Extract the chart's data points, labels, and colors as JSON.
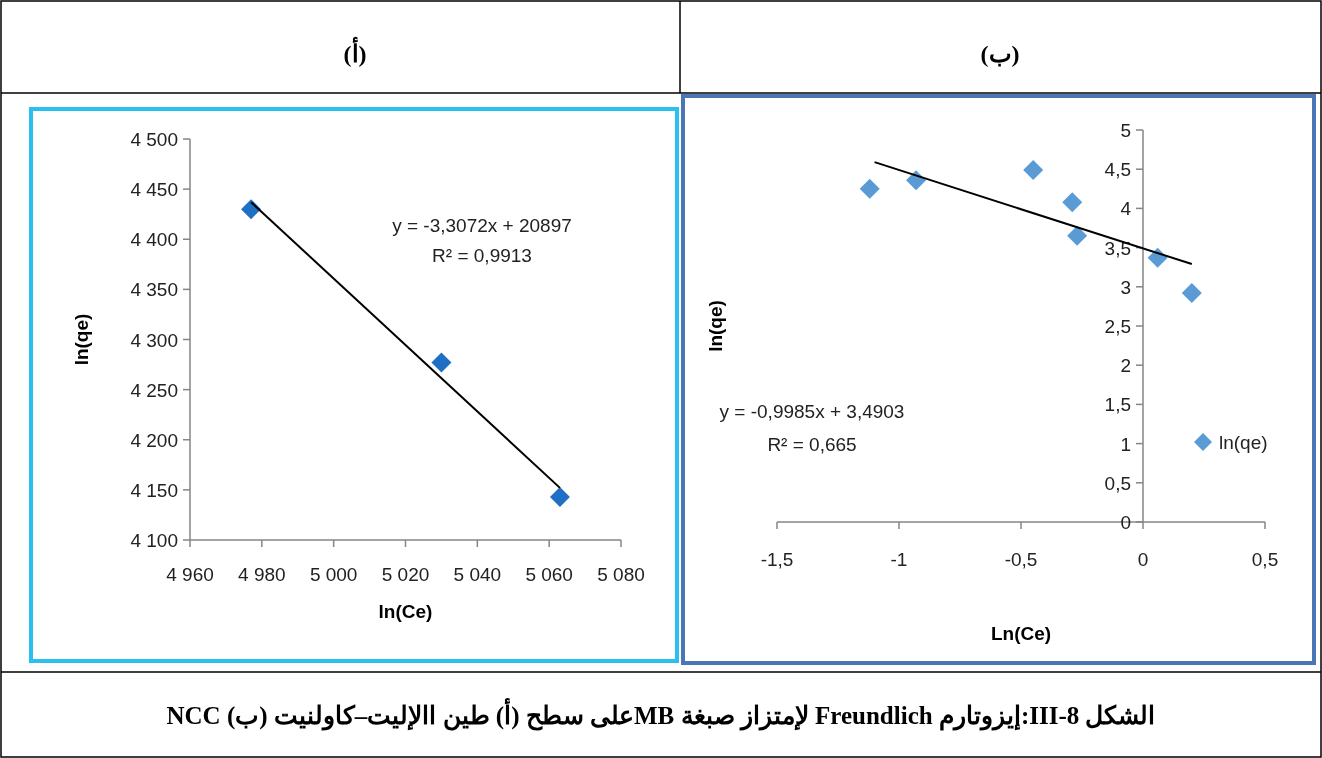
{
  "chart_data": [
    {
      "type": "scatter",
      "title": "(أ)",
      "xlabel": "ln(Ce)",
      "ylabel": "ln(qe)",
      "marker": "diamond",
      "xlim": [
        4960,
        5080
      ],
      "xticks": [
        {
          "value": 4960,
          "label": "4 960"
        },
        {
          "value": 4980,
          "label": "4 980"
        },
        {
          "value": 5000,
          "label": "5 000"
        },
        {
          "value": 5020,
          "label": "5 020"
        },
        {
          "value": 5040,
          "label": "5 040"
        },
        {
          "value": 5060,
          "label": "5 060"
        },
        {
          "value": 5080,
          "label": "5 080"
        }
      ],
      "ylim": [
        4100,
        4500
      ],
      "yticks": [
        {
          "value": 4100,
          "label": "4 100"
        },
        {
          "value": 4150,
          "label": "4 150"
        },
        {
          "value": 4200,
          "label": "4 200"
        },
        {
          "value": 4250,
          "label": "4 250"
        },
        {
          "value": 4300,
          "label": "4 300"
        },
        {
          "value": 4350,
          "label": "4 350"
        },
        {
          "value": 4400,
          "label": "4 400"
        },
        {
          "value": 4450,
          "label": "4 450"
        },
        {
          "value": 4500,
          "label": "4 500"
        }
      ],
      "series": [
        {
          "type": "scatter",
          "color": "#1f6fc5",
          "x": [
            4977,
            5030,
            5063
          ],
          "values": [
            4430,
            4277,
            4143
          ]
        },
        {
          "type": "line",
          "color": "#000000",
          "marker": "none",
          "x": [
            4977,
            5063
          ],
          "values": [
            4437,
            4152
          ]
        }
      ],
      "annotations": [
        "y = -3,3072x + 20897",
        "R² = 0,9913",
        "الشكل III-8:إيزوتارم Freundlich لإمتزاز صبغة MBعلى سطح (أ) طين االإليت–كاولنيت (ب) NCC"
      ]
    },
    {
      "type": "scatter",
      "title": "(ب)",
      "xlabel": "Ln(Ce)",
      "ylabel": "ln(qe)",
      "marker": "diamond",
      "legend": "right",
      "xlim": [
        -1.5,
        0.5
      ],
      "xticks": [
        {
          "value": -1.5,
          "label": "-1,5"
        },
        -1,
        {
          "value": -0.5,
          "label": "-0,5"
        },
        0,
        {
          "value": 0.5,
          "label": "0,5"
        }
      ],
      "ylim": [
        0,
        5
      ],
      "yticks": [
        0,
        {
          "value": 0.5,
          "label": "0,5"
        },
        1,
        {
          "value": 1.5,
          "label": "1,5"
        },
        2,
        {
          "value": 2.5,
          "label": "2,5"
        },
        3,
        {
          "value": 3.5,
          "label": "3,5"
        },
        4,
        {
          "value": 4.5,
          "label": "4,5"
        },
        5
      ],
      "series": [
        {
          "type": "scatter",
          "name": "ln(qe)",
          "color": "#5b9bd5",
          "x": [
            -1.12,
            -0.93,
            -0.45,
            -0.29,
            -0.27,
            0.06,
            0.2
          ],
          "values": [
            4.25,
            4.36,
            4.49,
            4.08,
            3.65,
            3.37,
            2.92
          ]
        },
        {
          "type": "line",
          "color": "#000000",
          "marker": "none",
          "x": [
            -1.1,
            0.2
          ],
          "values": [
            4.59,
            3.29
          ]
        }
      ],
      "annotations": [
        "y = -0,9985x + 3,4903",
        "R² = 0,665"
      ]
    }
  ]
}
